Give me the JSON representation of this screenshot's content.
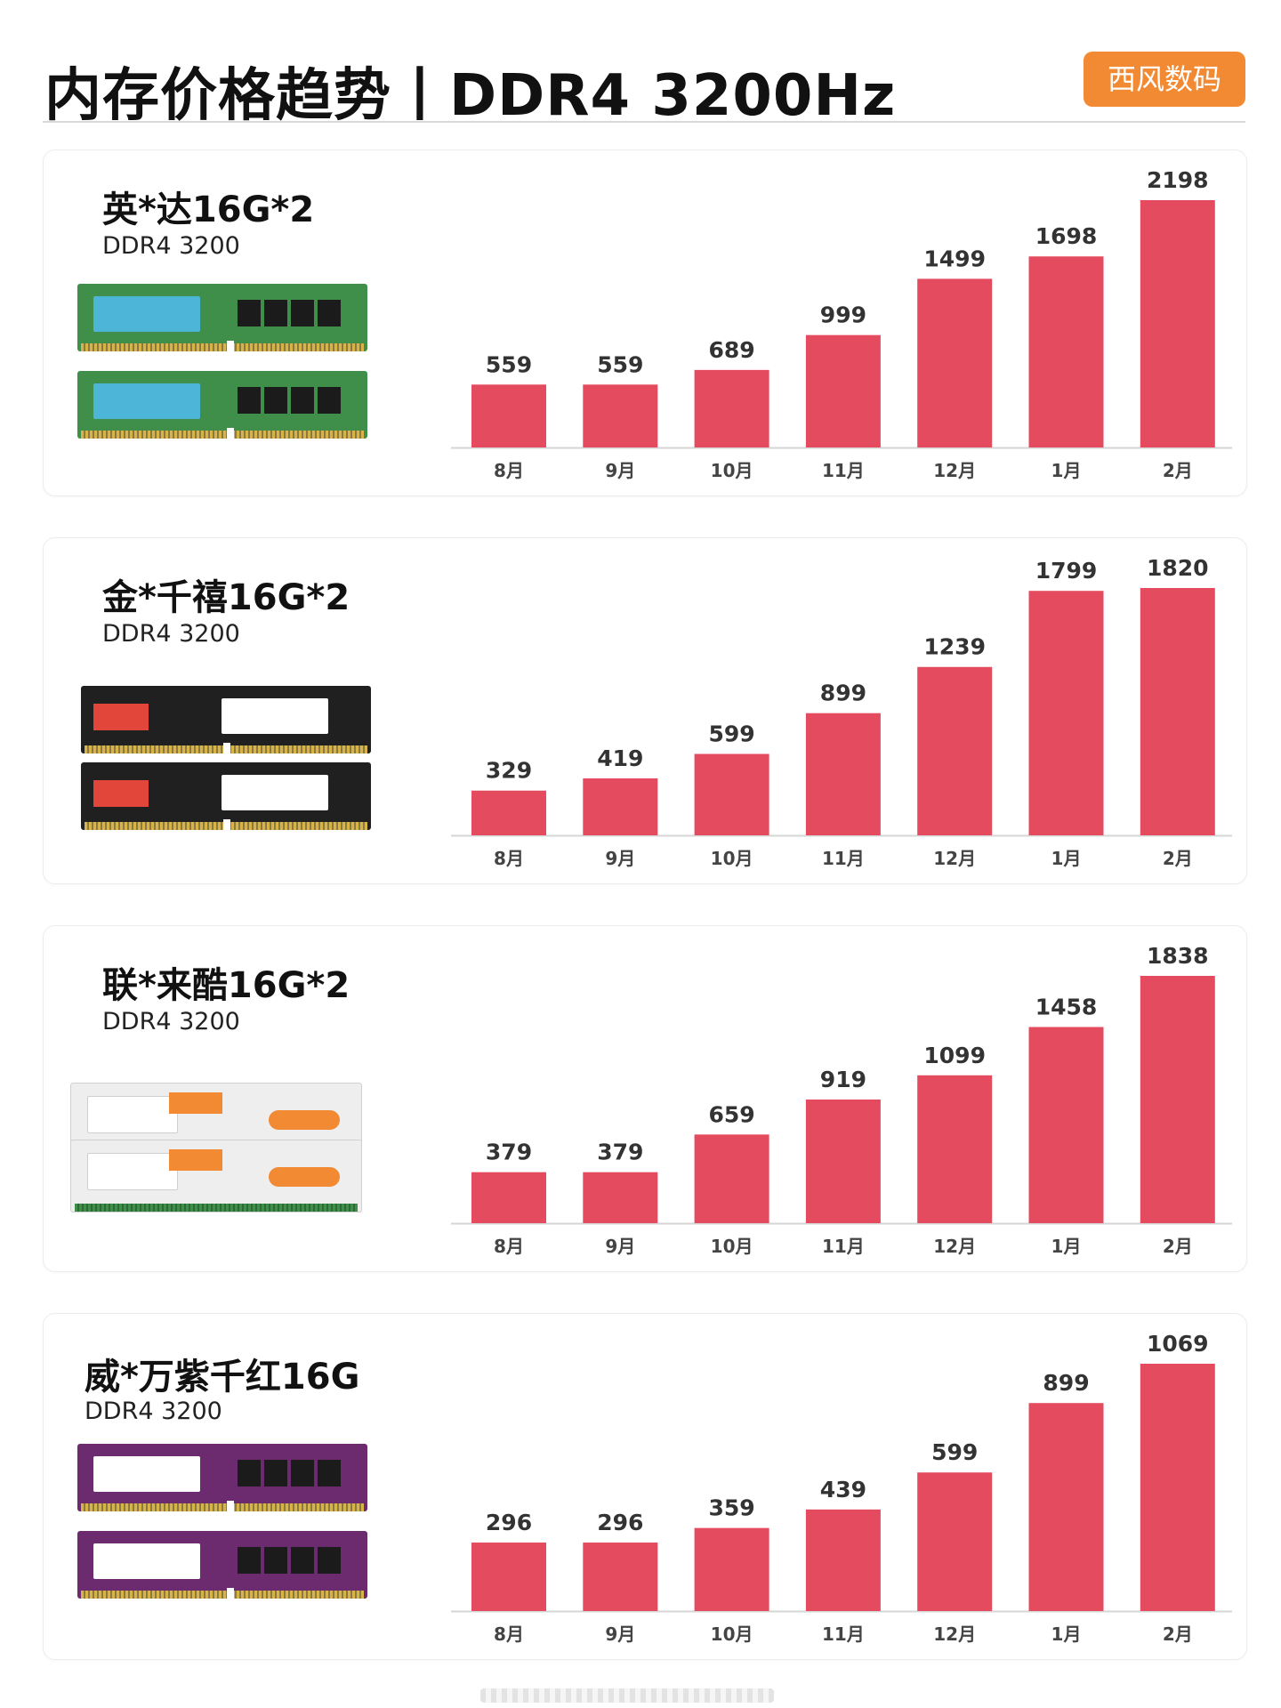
{
  "header": {
    "title": "内存价格趋势丨DDR4 3200Hz",
    "badge": "西风数码"
  },
  "bar_color": "#e54b5e",
  "products": [
    {
      "name": "英*达16G*2",
      "spec": "DDR4 3200",
      "module_color": "green"
    },
    {
      "name": "金*千禧16G*2",
      "spec": "DDR4 3200",
      "module_color": "black"
    },
    {
      "name": "联*来酷16G*2",
      "spec": "DDR4 3200",
      "module_color": "white"
    },
    {
      "name": "威*万紫千红16G",
      "spec": "DDR4 3200",
      "module_color": "purple"
    }
  ],
  "chart_data": [
    {
      "type": "bar",
      "categories": [
        "8月",
        "9月",
        "10月",
        "11月",
        "12月",
        "1月",
        "2月"
      ],
      "values": [
        559,
        559,
        689,
        999,
        1499,
        1698,
        2198
      ]
    },
    {
      "type": "bar",
      "categories": [
        "8月",
        "9月",
        "10月",
        "11月",
        "12月",
        "1月",
        "2月"
      ],
      "values": [
        329,
        419,
        599,
        899,
        1239,
        1799,
        1820
      ]
    },
    {
      "type": "bar",
      "categories": [
        "8月",
        "9月",
        "10月",
        "11月",
        "12月",
        "1月",
        "2月"
      ],
      "values": [
        379,
        379,
        659,
        919,
        1099,
        1458,
        1838
      ]
    },
    {
      "type": "bar",
      "categories": [
        "8月",
        "9月",
        "10月",
        "11月",
        "12月",
        "1月",
        "2月"
      ],
      "values": [
        296,
        296,
        359,
        439,
        599,
        899,
        1069
      ]
    }
  ]
}
